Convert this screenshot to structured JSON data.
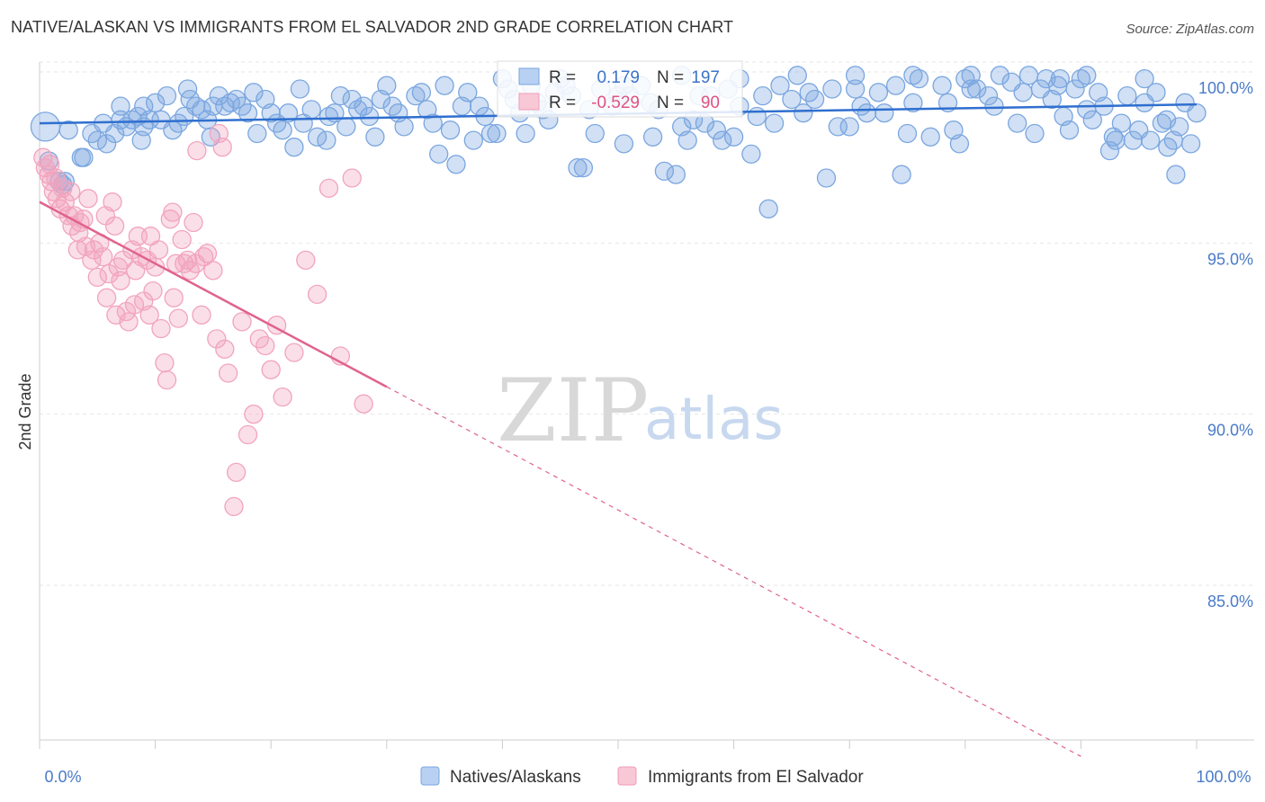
{
  "header": {
    "title": "NATIVE/ALASKAN VS IMMIGRANTS FROM EL SALVADOR 2ND GRADE CORRELATION CHART",
    "source": "Source: ZipAtlas.com"
  },
  "watermark": {
    "zip": "ZIP",
    "atlas": "atlas"
  },
  "chart_data": {
    "type": "scatter",
    "title": "NATIVE/ALASKAN VS IMMIGRANTS FROM EL SALVADOR 2ND GRADE CORRELATION CHART",
    "xlabel": "",
    "ylabel": "2nd Grade",
    "xlim": [
      0,
      100
    ],
    "ylim": [
      80.5,
      101.5
    ],
    "x_tick_labels": [
      "0.0%",
      "100.0%"
    ],
    "y_ticks": [
      85,
      90,
      95,
      100
    ],
    "y_tick_labels": [
      "85.0%",
      "90.0%",
      "95.0%",
      "100.0%"
    ],
    "grid": true,
    "legend_position": "bottom",
    "stats_box": [
      {
        "r_label": "R =",
        "r_value": "0.179",
        "n_label": "N =",
        "n_value": "197"
      },
      {
        "r_label": "R =",
        "r_value": "-0.529",
        "n_label": "N =",
        "n_value": "90"
      }
    ],
    "series": [
      {
        "name": "Natives/Alaskans",
        "color": "#7aa6e0",
        "line_color": "#2f6fcf",
        "trend": {
          "x": [
            0,
            100
          ],
          "y": [
            98.5,
            99.05
          ]
        },
        "points": [
          [
            0.5,
            98.4
          ],
          [
            0.8,
            97.4
          ],
          [
            1.7,
            96.8
          ],
          [
            2.0,
            96.7
          ],
          [
            2.2,
            96.8
          ],
          [
            3.6,
            97.5
          ],
          [
            3.8,
            97.5
          ],
          [
            4.5,
            98.2
          ],
          [
            5.0,
            98.0
          ],
          [
            5.8,
            97.9
          ],
          [
            6.5,
            98.2
          ],
          [
            7.0,
            98.6
          ],
          [
            7.5,
            98.4
          ],
          [
            8.0,
            98.6
          ],
          [
            8.5,
            98.7
          ],
          [
            9.0,
            98.4
          ],
          [
            9.5,
            98.6
          ],
          [
            9.0,
            99.0
          ],
          [
            10.0,
            99.1
          ],
          [
            10.5,
            98.6
          ],
          [
            11.5,
            98.3
          ],
          [
            11.0,
            99.3
          ],
          [
            12.0,
            98.5
          ],
          [
            12.5,
            98.7
          ],
          [
            13.0,
            99.2
          ],
          [
            13.5,
            99.0
          ],
          [
            14.0,
            98.9
          ],
          [
            14.5,
            98.6
          ],
          [
            15.0,
            99.0
          ],
          [
            15.5,
            99.3
          ],
          [
            16.0,
            99.0
          ],
          [
            16.5,
            99.1
          ],
          [
            17.5,
            99.0
          ],
          [
            18.0,
            98.8
          ],
          [
            18.5,
            99.4
          ],
          [
            19.5,
            99.2
          ],
          [
            20.0,
            98.8
          ],
          [
            20.5,
            98.5
          ],
          [
            21.0,
            98.3
          ],
          [
            21.5,
            98.8
          ],
          [
            22.0,
            97.8
          ],
          [
            22.8,
            98.5
          ],
          [
            23.5,
            98.9
          ],
          [
            24.0,
            98.1
          ],
          [
            25.0,
            98.7
          ],
          [
            25.5,
            98.8
          ],
          [
            26.0,
            99.3
          ],
          [
            27.0,
            99.2
          ],
          [
            27.5,
            98.9
          ],
          [
            28.0,
            99.0
          ],
          [
            28.5,
            98.7
          ],
          [
            29.5,
            99.2
          ],
          [
            30.5,
            99.0
          ],
          [
            31.0,
            98.8
          ],
          [
            31.5,
            98.4
          ],
          [
            32.5,
            99.3
          ],
          [
            33.5,
            98.9
          ],
          [
            34.0,
            98.5
          ],
          [
            34.5,
            97.6
          ],
          [
            35.5,
            98.3
          ],
          [
            36.0,
            97.3
          ],
          [
            36.5,
            99.0
          ],
          [
            37.0,
            99.4
          ],
          [
            38.0,
            99.0
          ],
          [
            38.5,
            98.7
          ],
          [
            39.0,
            98.2
          ],
          [
            39.5,
            98.2
          ],
          [
            40.5,
            99.5
          ],
          [
            41.0,
            99.2
          ],
          [
            41.5,
            98.8
          ],
          [
            42.5,
            99.6
          ],
          [
            43.0,
            99.1
          ],
          [
            43.5,
            98.9
          ],
          [
            44.5,
            99.4
          ],
          [
            45.5,
            99.6
          ],
          [
            46.0,
            99.3
          ],
          [
            46.5,
            97.2
          ],
          [
            47.0,
            97.2
          ],
          [
            47.5,
            98.9
          ],
          [
            48.5,
            99.5
          ],
          [
            49.5,
            99.0
          ],
          [
            50.0,
            99.3
          ],
          [
            51.0,
            99.3
          ],
          [
            52.0,
            99.6
          ],
          [
            52.8,
            99.1
          ],
          [
            53.5,
            98.9
          ],
          [
            54.0,
            97.1
          ],
          [
            55.0,
            97.0
          ],
          [
            55.5,
            98.4
          ],
          [
            56.0,
            98.0
          ],
          [
            56.5,
            98.6
          ],
          [
            57.0,
            99.3
          ],
          [
            58.0,
            99.3
          ],
          [
            59.0,
            98.0
          ],
          [
            59.5,
            99.5
          ],
          [
            60.0,
            98.1
          ],
          [
            60.5,
            99.0
          ],
          [
            61.5,
            97.6
          ],
          [
            62.5,
            99.3
          ],
          [
            63.0,
            96.0
          ],
          [
            63.5,
            98.5
          ],
          [
            64.0,
            99.6
          ],
          [
            65.0,
            99.2
          ],
          [
            66.0,
            98.8
          ],
          [
            67.0,
            99.2
          ],
          [
            68.0,
            96.9
          ],
          [
            68.5,
            99.5
          ],
          [
            69.0,
            98.4
          ],
          [
            70.5,
            99.5
          ],
          [
            71.0,
            99.0
          ],
          [
            71.5,
            98.8
          ],
          [
            72.5,
            99.4
          ],
          [
            73.0,
            98.8
          ],
          [
            74.0,
            99.6
          ],
          [
            75.0,
            98.2
          ],
          [
            75.5,
            99.1
          ],
          [
            76.0,
            99.8
          ],
          [
            77.0,
            98.1
          ],
          [
            78.0,
            99.6
          ],
          [
            78.5,
            99.1
          ],
          [
            79.0,
            98.3
          ],
          [
            80.0,
            99.8
          ],
          [
            80.5,
            99.5
          ],
          [
            81.0,
            99.5
          ],
          [
            82.0,
            99.3
          ],
          [
            82.5,
            99.0
          ],
          [
            83.0,
            99.9
          ],
          [
            84.0,
            99.7
          ],
          [
            85.0,
            99.4
          ],
          [
            86.0,
            98.2
          ],
          [
            86.5,
            99.5
          ],
          [
            87.0,
            99.8
          ],
          [
            87.5,
            99.2
          ],
          [
            88.0,
            99.6
          ],
          [
            88.5,
            98.7
          ],
          [
            89.0,
            98.3
          ],
          [
            89.5,
            99.5
          ],
          [
            90.0,
            99.8
          ],
          [
            90.5,
            98.9
          ],
          [
            91.0,
            98.6
          ],
          [
            91.5,
            99.4
          ],
          [
            92.0,
            99.0
          ],
          [
            92.5,
            97.7
          ],
          [
            93.0,
            98.0
          ],
          [
            93.5,
            98.5
          ],
          [
            94.0,
            99.3
          ],
          [
            94.5,
            98.0
          ],
          [
            95.0,
            98.3
          ],
          [
            95.5,
            99.1
          ],
          [
            96.0,
            98.0
          ],
          [
            96.5,
            99.4
          ],
          [
            97.0,
            98.5
          ],
          [
            97.5,
            97.8
          ],
          [
            98.0,
            98.0
          ],
          [
            98.5,
            98.4
          ],
          [
            99.0,
            99.1
          ],
          [
            99.5,
            97.9
          ],
          [
            100.0,
            98.8
          ],
          [
            98.2,
            97.0
          ],
          [
            97.4,
            98.6
          ],
          [
            26.5,
            98.4
          ],
          [
            33.0,
            99.4
          ],
          [
            44.0,
            98.6
          ],
          [
            50.5,
            97.9
          ],
          [
            57.5,
            98.5
          ],
          [
            62.0,
            98.7
          ],
          [
            66.5,
            99.4
          ],
          [
            70.0,
            98.4
          ],
          [
            74.5,
            97.0
          ],
          [
            79.5,
            97.9
          ],
          [
            84.5,
            98.5
          ],
          [
            88.2,
            99.8
          ],
          [
            92.8,
            98.1
          ],
          [
            7.0,
            99.0
          ],
          [
            12.8,
            99.5
          ],
          [
            17.0,
            99.2
          ],
          [
            22.5,
            99.5
          ],
          [
            30.0,
            99.6
          ],
          [
            35.0,
            99.6
          ],
          [
            40.0,
            99.8
          ],
          [
            45.0,
            99.8
          ],
          [
            50.5,
            99.6
          ],
          [
            55.5,
            99.9
          ],
          [
            60.5,
            99.8
          ],
          [
            65.5,
            99.9
          ],
          [
            70.5,
            99.9
          ],
          [
            75.5,
            99.9
          ],
          [
            80.5,
            99.9
          ],
          [
            85.5,
            99.9
          ],
          [
            90.5,
            99.9
          ],
          [
            95.5,
            99.8
          ],
          [
            2.5,
            98.3
          ],
          [
            5.5,
            98.5
          ],
          [
            8.8,
            98.0
          ],
          [
            14.8,
            98.1
          ],
          [
            18.8,
            98.2
          ],
          [
            24.8,
            98.0
          ],
          [
            29.0,
            98.1
          ],
          [
            37.5,
            98.0
          ],
          [
            42.0,
            98.2
          ],
          [
            48.0,
            98.2
          ],
          [
            53.0,
            98.1
          ],
          [
            58.5,
            98.3
          ]
        ]
      },
      {
        "name": "Immigrants from El Salvador",
        "color": "#f2a3bd",
        "line_color": "#e0628e",
        "trend": {
          "x": [
            0,
            30
          ],
          "y": [
            96.2,
            90.8
          ]
        },
        "trend_dashed": {
          "x": [
            30,
            90
          ],
          "y": [
            90.8,
            80.0
          ]
        },
        "points": [
          [
            0.3,
            97.5
          ],
          [
            0.5,
            97.2
          ],
          [
            0.8,
            97.0
          ],
          [
            1.0,
            96.8
          ],
          [
            1.2,
            96.5
          ],
          [
            1.5,
            96.3
          ],
          [
            1.8,
            96.0
          ],
          [
            2.0,
            96.6
          ],
          [
            2.2,
            96.2
          ],
          [
            2.5,
            95.8
          ],
          [
            2.8,
            95.5
          ],
          [
            3.0,
            95.8
          ],
          [
            3.3,
            94.8
          ],
          [
            3.5,
            95.6
          ],
          [
            3.8,
            95.7
          ],
          [
            4.0,
            94.9
          ],
          [
            4.2,
            96.3
          ],
          [
            4.5,
            94.5
          ],
          [
            4.7,
            94.8
          ],
          [
            5.0,
            94.0
          ],
          [
            5.2,
            95.0
          ],
          [
            5.5,
            94.6
          ],
          [
            5.7,
            95.8
          ],
          [
            6.0,
            94.1
          ],
          [
            6.3,
            96.2
          ],
          [
            6.5,
            95.5
          ],
          [
            6.8,
            94.3
          ],
          [
            7.0,
            93.9
          ],
          [
            7.2,
            94.5
          ],
          [
            7.5,
            93.0
          ],
          [
            7.7,
            92.7
          ],
          [
            8.0,
            94.8
          ],
          [
            8.3,
            94.2
          ],
          [
            8.5,
            95.2
          ],
          [
            8.8,
            94.6
          ],
          [
            9.0,
            93.3
          ],
          [
            9.3,
            94.5
          ],
          [
            9.5,
            92.9
          ],
          [
            9.8,
            93.6
          ],
          [
            10.0,
            94.3
          ],
          [
            10.3,
            94.8
          ],
          [
            10.5,
            92.5
          ],
          [
            10.8,
            91.5
          ],
          [
            11.0,
            91.0
          ],
          [
            11.3,
            95.7
          ],
          [
            11.5,
            95.9
          ],
          [
            11.8,
            94.4
          ],
          [
            12.0,
            92.8
          ],
          [
            12.3,
            95.1
          ],
          [
            12.5,
            94.4
          ],
          [
            12.8,
            94.5
          ],
          [
            13.0,
            94.2
          ],
          [
            13.3,
            95.6
          ],
          [
            13.5,
            94.4
          ],
          [
            14.0,
            92.9
          ],
          [
            14.5,
            94.7
          ],
          [
            15.0,
            94.2
          ],
          [
            15.3,
            92.2
          ],
          [
            15.5,
            98.2
          ],
          [
            16.0,
            91.9
          ],
          [
            16.3,
            91.2
          ],
          [
            16.8,
            87.3
          ],
          [
            17.5,
            92.7
          ],
          [
            18.0,
            89.4
          ],
          [
            18.5,
            90.0
          ],
          [
            19.0,
            92.2
          ],
          [
            19.5,
            92.0
          ],
          [
            20.0,
            91.3
          ],
          [
            20.5,
            92.6
          ],
          [
            21.0,
            90.5
          ],
          [
            22.0,
            91.8
          ],
          [
            23.0,
            94.5
          ],
          [
            24.0,
            93.5
          ],
          [
            25.0,
            96.6
          ],
          [
            26.0,
            91.7
          ],
          [
            27.0,
            96.9
          ],
          [
            28.0,
            90.3
          ],
          [
            17.0,
            88.3
          ],
          [
            8.2,
            93.2
          ],
          [
            13.6,
            97.7
          ],
          [
            5.8,
            93.4
          ],
          [
            9.6,
            95.2
          ],
          [
            14.2,
            94.6
          ],
          [
            6.6,
            92.9
          ],
          [
            3.4,
            95.3
          ],
          [
            2.7,
            96.5
          ],
          [
            1.4,
            96.9
          ],
          [
            0.9,
            97.3
          ],
          [
            11.6,
            93.4
          ],
          [
            15.8,
            97.8
          ]
        ]
      }
    ]
  },
  "legend": {
    "items": [
      {
        "label": "Natives/Alaskans",
        "color": "#b8d0f2",
        "border": "#7aa6e0"
      },
      {
        "label": "Immigrants from El Salvador",
        "color": "#f8c8d7",
        "border": "#ee9cb7"
      }
    ]
  }
}
